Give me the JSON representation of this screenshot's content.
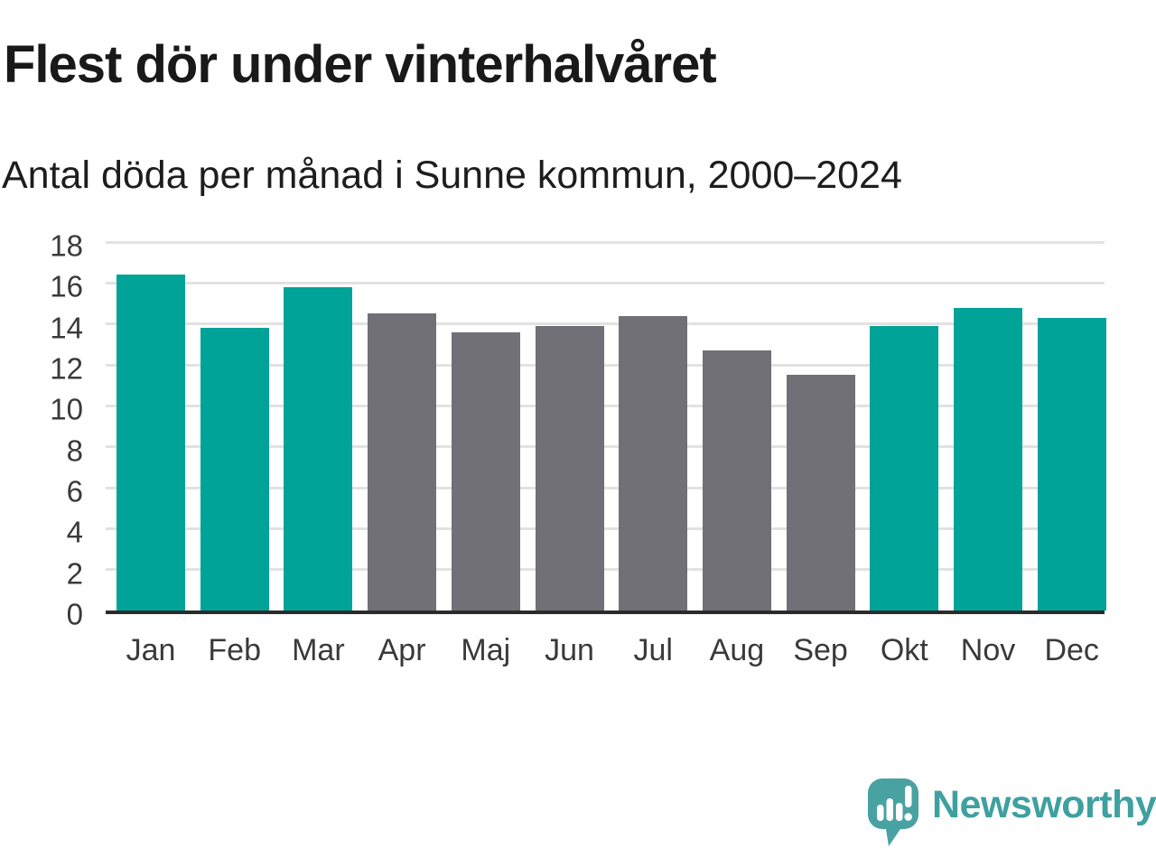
{
  "header": {
    "title": "Flest dör under vinterhalvåret",
    "subtitle": "Antal döda per månad i Sunne kommun, 2000–2024"
  },
  "chart_data": {
    "type": "bar",
    "title": "Flest dör under vinterhalvåret",
    "subtitle": "Antal döda per månad i Sunne kommun, 2000–2024",
    "categories": [
      "Jan",
      "Feb",
      "Mar",
      "Apr",
      "Maj",
      "Jun",
      "Jul",
      "Aug",
      "Sep",
      "Okt",
      "Nov",
      "Dec"
    ],
    "values": [
      16.4,
      13.8,
      15.8,
      14.5,
      13.6,
      13.9,
      14.4,
      12.7,
      11.5,
      13.9,
      14.8,
      14.3
    ],
    "bar_color_keys": [
      "teal",
      "teal",
      "teal",
      "gray",
      "gray",
      "gray",
      "gray",
      "gray",
      "gray",
      "teal",
      "teal",
      "teal"
    ],
    "xlabel": "",
    "ylabel": "",
    "ylim": [
      0,
      18
    ],
    "yticks": [
      0,
      2,
      4,
      6,
      8,
      10,
      12,
      14,
      16,
      18
    ],
    "grid": true,
    "legend": false,
    "colors": {
      "teal": "#00a397",
      "gray": "#717077",
      "gridline": "#e2e2e2",
      "axis_line": "#2b2b2b",
      "tick_text": "#3a3a3a"
    }
  },
  "footer": {
    "brand": "Newsworthy",
    "logo_icon": "newsworthy-speech-bubble-bar-chart-icon",
    "brand_color": "#3fa0a0",
    "icon_color": "#48a2a1"
  }
}
